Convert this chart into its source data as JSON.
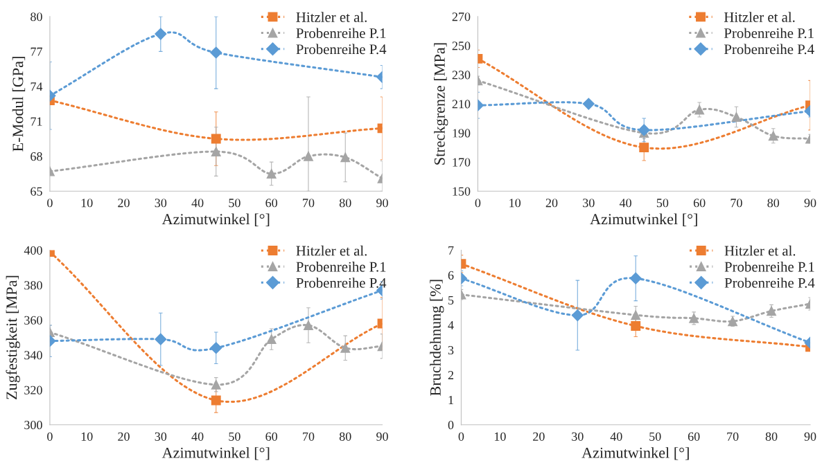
{
  "chart_data": [
    {
      "type": "line",
      "xlabel": "Azimutwinkel [°]",
      "ylabel": "E-Modul [GPa]",
      "xlim": [
        0,
        90
      ],
      "xticks": [
        0,
        10,
        20,
        30,
        40,
        50,
        60,
        70,
        80,
        90
      ],
      "ylim": [
        65,
        80
      ],
      "yticks": [
        65,
        68,
        71,
        74,
        77,
        80
      ],
      "grid": false,
      "legend": "top right",
      "line_style": "dotted",
      "series": [
        {
          "name": "Hitzler et al.",
          "color": "#ed7d31",
          "marker": "square",
          "x": [
            0,
            45,
            90
          ],
          "values": [
            72.8,
            69.5,
            70.4
          ],
          "errors": [
            null,
            2.3,
            2.7
          ]
        },
        {
          "name": "Probenreihe P.1",
          "color": "#a5a5a5",
          "marker": "triangle",
          "x": [
            0,
            45,
            60,
            70,
            80,
            90
          ],
          "values": [
            66.7,
            68.4,
            66.5,
            68.0,
            67.9,
            66.1
          ],
          "errors": [
            null,
            2.1,
            1.0,
            [
              65.0,
              73.1
            ],
            2.1,
            [
              65.0,
              67.6
            ]
          ]
        },
        {
          "name": "Probenreihe P.4",
          "color": "#5b9bd5",
          "marker": "diamond",
          "x": [
            0,
            30,
            45,
            90
          ],
          "values": [
            73.2,
            78.5,
            76.9,
            74.8
          ],
          "errors": [
            2.9,
            1.5,
            3.1,
            1.0
          ]
        }
      ]
    },
    {
      "type": "line",
      "xlabel": "Azimutwinkel [°]",
      "ylabel": "Streckgrenze [MPa]",
      "xlim": [
        0,
        90
      ],
      "xticks": [
        0,
        10,
        20,
        30,
        40,
        50,
        60,
        70,
        80,
        90
      ],
      "ylim": [
        150,
        270
      ],
      "yticks": [
        150,
        170,
        190,
        210,
        230,
        250,
        270
      ],
      "grid": false,
      "legend": "top right",
      "line_style": "dotted",
      "series": [
        {
          "name": "Hitzler et al.",
          "color": "#ed7d31",
          "marker": "square",
          "x": [
            0,
            45,
            90
          ],
          "values": [
            241,
            180,
            209
          ],
          "errors": [
            6,
            9,
            17
          ]
        },
        {
          "name": "Probenreihe P.1",
          "color": "#a5a5a5",
          "marker": "triangle",
          "x": [
            0,
            45,
            60,
            70,
            80,
            90
          ],
          "values": [
            226,
            190,
            206,
            201,
            188,
            186
          ],
          "errors": [
            3,
            4,
            5,
            7,
            5,
            3
          ]
        },
        {
          "name": "Probenreihe P.4",
          "color": "#5b9bd5",
          "marker": "diamond",
          "x": [
            0,
            30,
            45,
            90
          ],
          "values": [
            209,
            210,
            192,
            205
          ],
          "errors": [
            9,
            null,
            8,
            4
          ]
        }
      ]
    },
    {
      "type": "line",
      "xlabel": "Azimutwinkel [°]",
      "ylabel": "Zugfestigkeit [MPa]",
      "xlim": [
        0,
        90
      ],
      "xticks": [
        0,
        10,
        20,
        30,
        40,
        50,
        60,
        70,
        80,
        90
      ],
      "ylim": [
        300,
        400
      ],
      "yticks": [
        300,
        320,
        340,
        360,
        380,
        400
      ],
      "grid": false,
      "legend": "top right",
      "line_style": "dotted",
      "series": [
        {
          "name": "Hitzler et al.",
          "color": "#ed7d31",
          "marker": "square",
          "x": [
            0,
            45,
            90
          ],
          "values": [
            399,
            314,
            358
          ],
          "errors": [
            null,
            7,
            15
          ]
        },
        {
          "name": "Probenreihe P.1",
          "color": "#a5a5a5",
          "marker": "triangle",
          "x": [
            0,
            45,
            60,
            70,
            80,
            90
          ],
          "values": [
            353,
            323,
            349,
            357,
            344,
            345
          ],
          "errors": [
            4,
            4,
            6,
            10,
            7,
            7
          ]
        },
        {
          "name": "Probenreihe P.4",
          "color": "#5b9bd5",
          "marker": "diamond",
          "x": [
            0,
            30,
            45,
            90
          ],
          "values": [
            348,
            349,
            344,
            377
          ],
          "errors": [
            9,
            15,
            9,
            5
          ]
        }
      ]
    },
    {
      "type": "line",
      "xlabel": "Azimutwinkel [°]",
      "ylabel": "Bruchdehnung [%]",
      "xlim": [
        0,
        90
      ],
      "xticks": [
        0,
        10,
        20,
        30,
        40,
        50,
        60,
        70,
        80,
        90
      ],
      "ylim": [
        0,
        7
      ],
      "yticks": [
        0,
        1,
        2,
        3,
        4,
        5,
        6,
        7
      ],
      "grid": false,
      "legend": "top right",
      "line_style": "dotted",
      "series": [
        {
          "name": "Hitzler et al.",
          "color": "#ed7d31",
          "marker": "square",
          "x": [
            0,
            45,
            90
          ],
          "values": [
            6.45,
            3.96,
            3.12
          ],
          "errors": [
            0.35,
            0.43,
            null
          ]
        },
        {
          "name": "Probenreihe P.1",
          "color": "#a5a5a5",
          "marker": "triangle",
          "x": [
            0,
            45,
            60,
            70,
            80,
            90
          ],
          "values": [
            5.22,
            4.4,
            4.27,
            4.15,
            4.56,
            4.85
          ],
          "errors": [
            0.2,
            0.35,
            0.25,
            0.2,
            0.25,
            0.25
          ]
        },
        {
          "name": "Probenreihe P.4",
          "color": "#5b9bd5",
          "marker": "diamond",
          "x": [
            0,
            30,
            45,
            90
          ],
          "values": [
            5.87,
            4.39,
            5.87,
            3.29
          ],
          "errors": [
            0.3,
            1.4,
            0.9,
            null
          ]
        }
      ]
    }
  ]
}
